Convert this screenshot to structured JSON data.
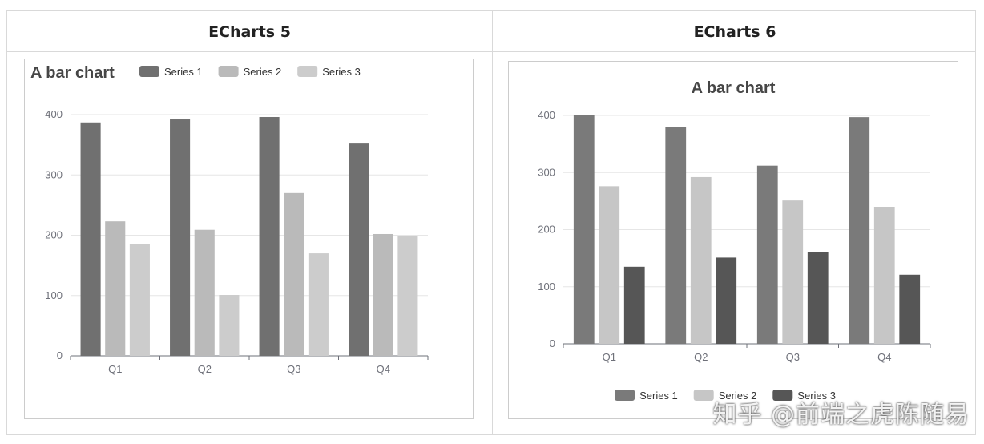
{
  "columns": [
    "ECharts 5",
    "ECharts 6"
  ],
  "watermark": "知乎 @前端之虎陈随易",
  "colors": {
    "e5": [
      "#707070",
      "#bababa",
      "#cccccc"
    ],
    "e6": [
      "#7a7a7a",
      "#c6c6c6",
      "#565656"
    ],
    "grid": "#e6e6e6",
    "axis": "#6e7079",
    "title": "#464646"
  },
  "chart_data": [
    {
      "type": "bar",
      "title": "A bar chart",
      "categories": [
        "Q1",
        "Q2",
        "Q3",
        "Q4"
      ],
      "series": [
        {
          "name": "Series 1",
          "values": [
            387,
            392,
            396,
            352
          ]
        },
        {
          "name": "Series 2",
          "values": [
            223,
            209,
            270,
            202
          ]
        },
        {
          "name": "Series 3",
          "values": [
            185,
            101,
            170,
            198
          ]
        }
      ],
      "ylim": [
        0,
        400
      ],
      "yticks": [
        0,
        100,
        200,
        300,
        400
      ],
      "grid": true,
      "legend": "top"
    },
    {
      "type": "bar",
      "title": "A bar chart",
      "categories": [
        "Q1",
        "Q2",
        "Q3",
        "Q4"
      ],
      "series": [
        {
          "name": "Series 1",
          "values": [
            400,
            380,
            312,
            397
          ]
        },
        {
          "name": "Series 2",
          "values": [
            276,
            292,
            251,
            240
          ]
        },
        {
          "name": "Series 3",
          "values": [
            135,
            151,
            160,
            121
          ]
        }
      ],
      "ylim": [
        0,
        400
      ],
      "yticks": [
        0,
        100,
        200,
        300,
        400
      ],
      "grid": true,
      "legend": "bottom"
    }
  ]
}
